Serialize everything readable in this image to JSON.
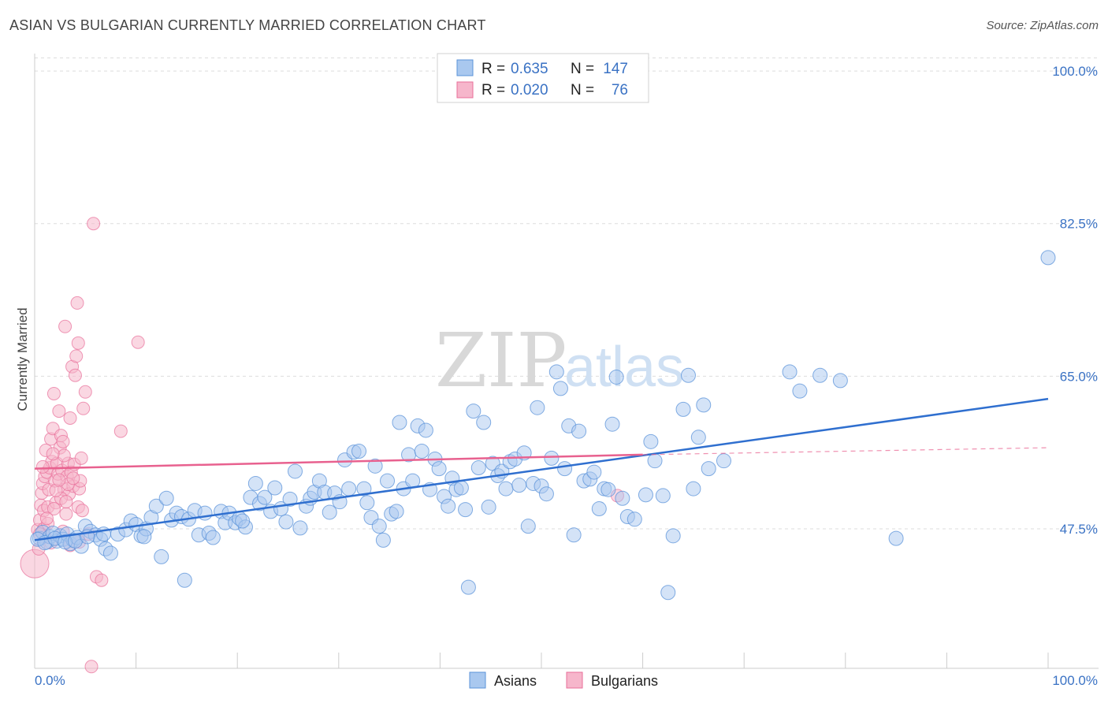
{
  "title": "ASIAN VS BULGARIAN CURRENTLY MARRIED CORRELATION CHART",
  "source": "Source: ZipAtlas.com",
  "watermark": {
    "zip": "ZIP",
    "atlas": "atlas"
  },
  "colors": {
    "asian": "#5b93d9",
    "asian_fill": "#a9c8ef",
    "bulgarian": "#e86f9a",
    "bulgarian_fill": "#f6b6cb",
    "tick_text": "#3a72c4"
  },
  "legend": {
    "r_label": "R =",
    "n_label": "N =",
    "asian": {
      "r": "0.635",
      "n": "147"
    },
    "bulgarian": {
      "r": "0.020",
      "n": "76"
    }
  },
  "bottom_legend": {
    "asians": "Asians",
    "bulgarians": "Bulgarians"
  },
  "chart_data": {
    "type": "scatter",
    "ylabel": "Currently Married",
    "xlabel": "",
    "x_tick_labels": [
      "0.0%",
      "100.0%"
    ],
    "y_tick_labels": [
      "100.0%",
      "82.5%",
      "65.0%",
      "47.5%"
    ],
    "y_ticks": [
      100.0,
      82.5,
      65.0,
      47.5
    ],
    "xlim": [
      0,
      100
    ],
    "ylim": [
      31.5,
      102
    ],
    "grid": true,
    "legend_position": "top-center",
    "series": [
      {
        "name": "Asians",
        "r": 0.635,
        "n": 147,
        "trend": {
          "x": [
            0,
            100
          ],
          "y": [
            46.2,
            62.4
          ]
        },
        "points": [
          [
            0.5,
            46.4
          ],
          [
            0.8,
            47.1
          ],
          [
            1.2,
            46.0
          ],
          [
            1.5,
            46.6
          ],
          [
            1.8,
            47.0
          ],
          [
            2.2,
            46.1
          ],
          [
            2.5,
            46.7
          ],
          [
            2.8,
            46.3
          ],
          [
            3.2,
            46.9
          ],
          [
            3.5,
            45.8
          ],
          [
            3.8,
            46.2
          ],
          [
            4.2,
            46.5
          ],
          [
            4.6,
            45.5
          ],
          [
            5.0,
            47.8
          ],
          [
            5.5,
            47.2
          ],
          [
            6.0,
            46.8
          ],
          [
            6.5,
            46.3
          ],
          [
            7.0,
            45.2
          ],
          [
            7.5,
            44.7
          ],
          [
            8.2,
            46.9
          ],
          [
            9.0,
            47.4
          ],
          [
            9.5,
            48.4
          ],
          [
            10.0,
            48.0
          ],
          [
            10.5,
            46.7
          ],
          [
            11.0,
            47.5
          ],
          [
            11.5,
            48.8
          ],
          [
            12.0,
            50.1
          ],
          [
            12.5,
            44.3
          ],
          [
            13.0,
            51.0
          ],
          [
            13.5,
            48.5
          ],
          [
            14.0,
            49.3
          ],
          [
            14.5,
            48.9
          ],
          [
            14.8,
            41.6
          ],
          [
            15.2,
            48.6
          ],
          [
            15.8,
            49.6
          ],
          [
            16.2,
            46.8
          ],
          [
            16.8,
            49.3
          ],
          [
            17.2,
            47.0
          ],
          [
            17.6,
            46.5
          ],
          [
            18.4,
            49.5
          ],
          [
            18.8,
            48.2
          ],
          [
            19.2,
            49.3
          ],
          [
            19.8,
            48.2
          ],
          [
            20.2,
            48.7
          ],
          [
            20.8,
            47.7
          ],
          [
            21.3,
            51.1
          ],
          [
            21.8,
            52.7
          ],
          [
            22.2,
            50.4
          ],
          [
            22.7,
            51.1
          ],
          [
            23.3,
            49.5
          ],
          [
            23.7,
            52.2
          ],
          [
            24.3,
            49.8
          ],
          [
            24.8,
            48.3
          ],
          [
            25.2,
            50.9
          ],
          [
            25.7,
            54.1
          ],
          [
            26.2,
            47.6
          ],
          [
            26.8,
            50.1
          ],
          [
            27.2,
            51.0
          ],
          [
            27.6,
            51.7
          ],
          [
            28.1,
            53.0
          ],
          [
            28.6,
            51.7
          ],
          [
            29.1,
            49.4
          ],
          [
            29.6,
            51.6
          ],
          [
            30.1,
            50.6
          ],
          [
            30.6,
            55.4
          ],
          [
            31.0,
            52.1
          ],
          [
            31.5,
            56.3
          ],
          [
            32.0,
            56.4
          ],
          [
            32.5,
            52.1
          ],
          [
            32.8,
            50.5
          ],
          [
            33.2,
            48.8
          ],
          [
            33.6,
            54.7
          ],
          [
            34.0,
            47.8
          ],
          [
            34.4,
            46.2
          ],
          [
            34.8,
            53.0
          ],
          [
            35.2,
            49.2
          ],
          [
            35.7,
            49.5
          ],
          [
            36.0,
            59.7
          ],
          [
            36.4,
            52.1
          ],
          [
            36.9,
            56.0
          ],
          [
            37.3,
            53.0
          ],
          [
            37.8,
            59.3
          ],
          [
            38.2,
            56.4
          ],
          [
            38.6,
            58.8
          ],
          [
            39.0,
            52.0
          ],
          [
            39.5,
            55.5
          ],
          [
            39.9,
            54.4
          ],
          [
            40.4,
            51.2
          ],
          [
            40.8,
            50.1
          ],
          [
            41.2,
            53.3
          ],
          [
            41.6,
            52.0
          ],
          [
            42.1,
            52.2
          ],
          [
            42.5,
            49.7
          ],
          [
            42.8,
            40.8
          ],
          [
            43.3,
            61.0
          ],
          [
            43.8,
            54.5
          ],
          [
            44.3,
            59.7
          ],
          [
            44.8,
            50.0
          ],
          [
            45.2,
            55.0
          ],
          [
            45.7,
            53.6
          ],
          [
            46.1,
            54.1
          ],
          [
            46.5,
            52.1
          ],
          [
            46.9,
            55.2
          ],
          [
            47.4,
            55.5
          ],
          [
            47.8,
            52.5
          ],
          [
            48.3,
            56.2
          ],
          [
            48.7,
            47.8
          ],
          [
            49.2,
            52.7
          ],
          [
            49.6,
            61.4
          ],
          [
            50.0,
            52.4
          ],
          [
            50.5,
            51.5
          ],
          [
            51.0,
            55.6
          ],
          [
            51.5,
            65.5
          ],
          [
            51.9,
            63.6
          ],
          [
            52.3,
            54.4
          ],
          [
            52.7,
            59.3
          ],
          [
            53.2,
            46.8
          ],
          [
            53.7,
            58.7
          ],
          [
            54.2,
            53.0
          ],
          [
            54.8,
            53.2
          ],
          [
            55.2,
            54.0
          ],
          [
            55.7,
            49.8
          ],
          [
            56.2,
            52.1
          ],
          [
            56.6,
            52.0
          ],
          [
            57.0,
            59.5
          ],
          [
            57.4,
            64.9
          ],
          [
            58.0,
            51.0
          ],
          [
            58.5,
            48.9
          ],
          [
            59.2,
            48.6
          ],
          [
            60.3,
            51.4
          ],
          [
            60.8,
            57.5
          ],
          [
            61.2,
            55.3
          ],
          [
            62.0,
            51.3
          ],
          [
            62.5,
            40.2
          ],
          [
            63.0,
            46.7
          ],
          [
            64.0,
            61.2
          ],
          [
            64.5,
            65.1
          ],
          [
            65.0,
            52.1
          ],
          [
            65.5,
            58.0
          ],
          [
            66.0,
            61.7
          ],
          [
            66.5,
            54.4
          ],
          [
            68.0,
            55.3
          ],
          [
            74.5,
            65.5
          ],
          [
            75.5,
            63.3
          ],
          [
            77.5,
            65.1
          ],
          [
            79.5,
            64.5
          ],
          [
            85.0,
            46.4
          ],
          [
            100.0,
            78.6
          ],
          [
            0.3,
            46.3
          ],
          [
            1.0,
            45.9
          ],
          [
            2.0,
            46.4
          ],
          [
            3.0,
            46.0
          ],
          [
            4.0,
            46.1
          ],
          [
            5.2,
            46.6
          ],
          [
            6.8,
            46.9
          ],
          [
            10.8,
            46.6
          ],
          [
            20.5,
            48.4
          ]
        ]
      },
      {
        "name": "Bulgarians",
        "r": 0.02,
        "n": 76,
        "trend": {
          "x": [
            0,
            60
          ],
          "y": [
            54.4,
            56.0
          ]
        },
        "trend_dashed": {
          "x": [
            60,
            100
          ],
          "y": [
            56.0,
            56.8
          ]
        },
        "points": [
          [
            0.0,
            43.5
          ],
          [
            0.3,
            47.4
          ],
          [
            0.5,
            48.5
          ],
          [
            0.6,
            50.2
          ],
          [
            0.7,
            51.6
          ],
          [
            0.8,
            52.7
          ],
          [
            0.9,
            49.6
          ],
          [
            1.0,
            53.5
          ],
          [
            1.1,
            56.5
          ],
          [
            1.2,
            54.0
          ],
          [
            1.3,
            50.0
          ],
          [
            1.4,
            52.0
          ],
          [
            1.5,
            54.5
          ],
          [
            1.6,
            57.8
          ],
          [
            1.7,
            55.2
          ],
          [
            1.8,
            59.0
          ],
          [
            1.9,
            63.0
          ],
          [
            2.0,
            53.0
          ],
          [
            2.1,
            50.5
          ],
          [
            2.2,
            55.0
          ],
          [
            2.3,
            53.8
          ],
          [
            2.4,
            61.0
          ],
          [
            2.5,
            56.8
          ],
          [
            2.6,
            58.2
          ],
          [
            2.7,
            54.2
          ],
          [
            2.8,
            57.5
          ],
          [
            2.9,
            52.0
          ],
          [
            3.0,
            70.7
          ],
          [
            3.1,
            49.2
          ],
          [
            3.2,
            53.5
          ],
          [
            3.3,
            55.0
          ],
          [
            3.4,
            51.5
          ],
          [
            3.5,
            60.2
          ],
          [
            3.6,
            54.0
          ],
          [
            3.7,
            66.1
          ],
          [
            3.8,
            52.4
          ],
          [
            3.9,
            54.9
          ],
          [
            4.0,
            65.1
          ],
          [
            4.1,
            67.3
          ],
          [
            4.2,
            73.4
          ],
          [
            4.3,
            68.8
          ],
          [
            4.4,
            52.1
          ],
          [
            4.5,
            53.0
          ],
          [
            4.6,
            55.6
          ],
          [
            4.8,
            61.3
          ],
          [
            5.0,
            63.2
          ],
          [
            5.3,
            46.9
          ],
          [
            5.6,
            31.7
          ],
          [
            5.8,
            82.5
          ],
          [
            6.1,
            42.0
          ],
          [
            6.6,
            41.6
          ],
          [
            8.5,
            58.7
          ],
          [
            10.2,
            68.9
          ],
          [
            57.5,
            51.3
          ],
          [
            0.4,
            45.2
          ],
          [
            0.9,
            47.5
          ],
          [
            1.3,
            48.1
          ],
          [
            1.9,
            49.8
          ],
          [
            2.6,
            51.0
          ],
          [
            3.3,
            52.6
          ],
          [
            3.8,
            53.3
          ],
          [
            4.3,
            50.0
          ],
          [
            4.7,
            49.6
          ],
          [
            1.0,
            46.6
          ],
          [
            1.6,
            45.9
          ],
          [
            2.8,
            47.2
          ],
          [
            3.5,
            45.6
          ],
          [
            0.5,
            46.9
          ],
          [
            1.2,
            48.7
          ],
          [
            2.1,
            51.9
          ],
          [
            2.9,
            55.9
          ],
          [
            0.8,
            54.6
          ],
          [
            1.8,
            56.1
          ],
          [
            2.4,
            53.1
          ],
          [
            3.1,
            50.6
          ],
          [
            4.4,
            46.0
          ]
        ]
      }
    ]
  }
}
